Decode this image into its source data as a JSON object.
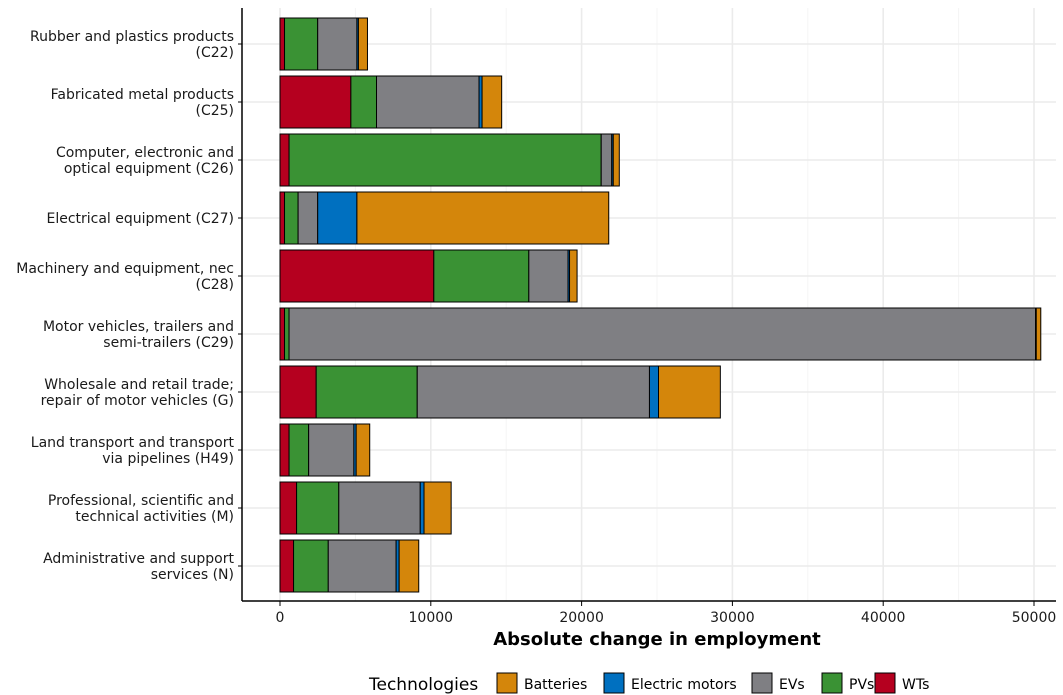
{
  "chart_data": {
    "type": "bar",
    "orientation": "horizontal",
    "stacked": true,
    "xlabel": "Absolute change in employment",
    "xlim": [
      -2500,
      52000
    ],
    "xticks": [
      0,
      10000,
      20000,
      30000,
      40000,
      50000
    ],
    "xtick_labels": [
      "0",
      "10000",
      "20000",
      "30000",
      "40000",
      "50000"
    ],
    "grid": true,
    "legend_position": "bottom",
    "legend_title": "Technologies",
    "categories": [
      [
        "Rubber and plastics products",
        "(C22)"
      ],
      [
        "Fabricated metal products",
        "(C25)"
      ],
      [
        "Computer, electronic and",
        "optical equipment (C26)"
      ],
      [
        "Electrical equipment (C27)"
      ],
      [
        "Machinery and equipment, nec",
        "(C28)"
      ],
      [
        "Motor vehicles, trailers and",
        "semi-trailers (C29)"
      ],
      [
        "Wholesale and retail trade;",
        "repair of motor vehicles (G)"
      ],
      [
        "Land transport and transport",
        "via pipelines (H49)"
      ],
      [
        "Professional, scientific and",
        "technical activities (M)"
      ],
      [
        "Administrative and support",
        "services (N)"
      ]
    ],
    "stack_order": [
      "WTs",
      "PVs",
      "EVs",
      "Electric motors",
      "Batteries"
    ],
    "series": [
      {
        "name": "WTs",
        "color": "#B5001F",
        "values": [
          300,
          4700,
          600,
          300,
          10200,
          300,
          2400,
          600,
          1100,
          900
        ]
      },
      {
        "name": "PVs",
        "color": "#3A9234",
        "values": [
          2200,
          1700,
          20700,
          900,
          6300,
          300,
          6700,
          1300,
          2800,
          2300
        ]
      },
      {
        "name": "EVs",
        "color": "#7F7F83",
        "values": [
          2600,
          6800,
          700,
          1300,
          2600,
          49500,
          15400,
          3000,
          5400,
          4500
        ]
      },
      {
        "name": "Electric motors",
        "color": "#0070C0",
        "values": [
          100,
          200,
          100,
          2600,
          100,
          50,
          600,
          150,
          250,
          200
        ]
      },
      {
        "name": "Batteries",
        "color": "#D4860B",
        "values": [
          600,
          1300,
          400,
          16700,
          500,
          300,
          4100,
          900,
          1800,
          1300
        ]
      }
    ],
    "legend_order": [
      "Batteries",
      "Electric motors",
      "EVs",
      "PVs",
      "WTs"
    ]
  }
}
